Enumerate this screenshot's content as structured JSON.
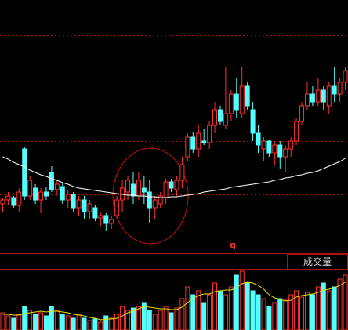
{
  "chart_data": [
    {
      "type": "candlestick",
      "annotation": "q",
      "up_color": "#ff3232",
      "down_color": "#54ffff",
      "open": [
        40,
        45,
        48,
        38,
        110,
        50,
        60,
        45,
        55,
        80,
        58,
        62,
        45,
        52,
        35,
        45,
        30,
        35,
        22,
        25,
        15,
        25,
        45,
        55,
        65,
        50,
        60,
        55,
        35,
        40,
        48,
        68,
        58,
        70,
        100,
        125,
        110,
        120,
        118,
        140,
        160,
        140,
        155,
        180,
        155,
        190,
        160,
        130,
        110,
        120,
        105,
        115,
        100,
        110,
        120,
        145,
        165,
        180,
        170,
        185,
        165,
        190,
        180,
        195
      ],
      "high": [
        48,
        55,
        50,
        60,
        112,
        75,
        65,
        60,
        62,
        88,
        70,
        66,
        58,
        55,
        50,
        50,
        45,
        38,
        30,
        28,
        25,
        50,
        70,
        75,
        80,
        80,
        75,
        70,
        50,
        55,
        72,
        72,
        75,
        100,
        130,
        132,
        140,
        135,
        145,
        170,
        165,
        215,
        185,
        200,
        215,
        195,
        170,
        140,
        125,
        122,
        120,
        120,
        115,
        125,
        150,
        170,
        195,
        190,
        200,
        190,
        195,
        215,
        200,
        215
      ],
      "low": [
        30,
        38,
        35,
        30,
        45,
        45,
        40,
        28,
        45,
        55,
        50,
        40,
        35,
        30,
        25,
        20,
        20,
        18,
        12,
        5,
        8,
        22,
        30,
        45,
        40,
        45,
        40,
        15,
        20,
        35,
        40,
        55,
        50,
        60,
        95,
        105,
        100,
        115,
        110,
        130,
        140,
        135,
        145,
        150,
        150,
        160,
        120,
        105,
        95,
        100,
        90,
        85,
        80,
        100,
        115,
        140,
        160,
        165,
        165,
        160,
        155,
        170,
        170,
        185
      ],
      "close": [
        45,
        50,
        38,
        55,
        50,
        70,
        45,
        55,
        50,
        58,
        65,
        45,
        52,
        35,
        45,
        30,
        40,
        22,
        25,
        15,
        20,
        45,
        60,
        70,
        50,
        70,
        55,
        35,
        45,
        50,
        68,
        60,
        70,
        90,
        125,
        110,
        130,
        118,
        140,
        160,
        145,
        155,
        180,
        160,
        190,
        165,
        130,
        115,
        120,
        105,
        115,
        100,
        110,
        120,
        145,
        165,
        180,
        170,
        185,
        170,
        190,
        180,
        195,
        210
      ],
      "ma": {
        "color": "#ffffff",
        "values": [
          100,
          97,
          93,
          90,
          87,
          83,
          80,
          77,
          75,
          72,
          70,
          67,
          65,
          62,
          60,
          59,
          58,
          57,
          56,
          55,
          54,
          53,
          52,
          51,
          51,
          50,
          50,
          49,
          49,
          48,
          48,
          49,
          49,
          50,
          51,
          52,
          53,
          55,
          56,
          57,
          58,
          59,
          61,
          62,
          63,
          64,
          65,
          66,
          67,
          68,
          70,
          71,
          73,
          74,
          76,
          77,
          79,
          80,
          82,
          85,
          88,
          91,
          94,
          98
        ]
      },
      "ylim": [
        0,
        300
      ],
      "yticks": [
        52,
        120,
        187,
        255
      ],
      "grid_color": "#a01010"
    },
    {
      "type": "bar",
      "title": "成交量",
      "values": [
        22,
        18,
        15,
        20,
        30,
        25,
        20,
        22,
        18,
        30,
        25,
        20,
        18,
        15,
        20,
        15,
        12,
        14,
        10,
        18,
        15,
        20,
        30,
        25,
        28,
        30,
        35,
        25,
        20,
        25,
        30,
        22,
        28,
        40,
        55,
        45,
        50,
        35,
        45,
        60,
        50,
        45,
        55,
        70,
        75,
        60,
        50,
        45,
        40,
        30,
        35,
        40,
        38,
        45,
        50,
        42,
        48,
        45,
        55,
        60,
        50,
        55,
        65,
        70
      ],
      "ma": {
        "color": "#e8e000",
        "values": [
          20,
          20,
          19,
          19,
          21,
          22,
          23,
          24,
          23,
          24,
          24,
          23,
          22,
          20,
          19,
          18,
          16,
          15,
          13,
          14,
          14,
          15,
          18,
          22,
          24,
          27,
          30,
          29,
          28,
          27,
          27,
          26,
          26,
          29,
          35,
          40,
          44,
          46,
          46,
          49,
          50,
          51,
          51,
          54,
          59,
          61,
          60,
          57,
          52,
          45,
          41,
          39,
          37,
          38,
          42,
          44,
          45,
          46,
          48,
          51,
          52,
          54,
          57,
          61
        ]
      },
      "ylim": [
        0,
        80
      ],
      "yticks": [
        40
      ],
      "grid_color": "#a01010"
    }
  ]
}
